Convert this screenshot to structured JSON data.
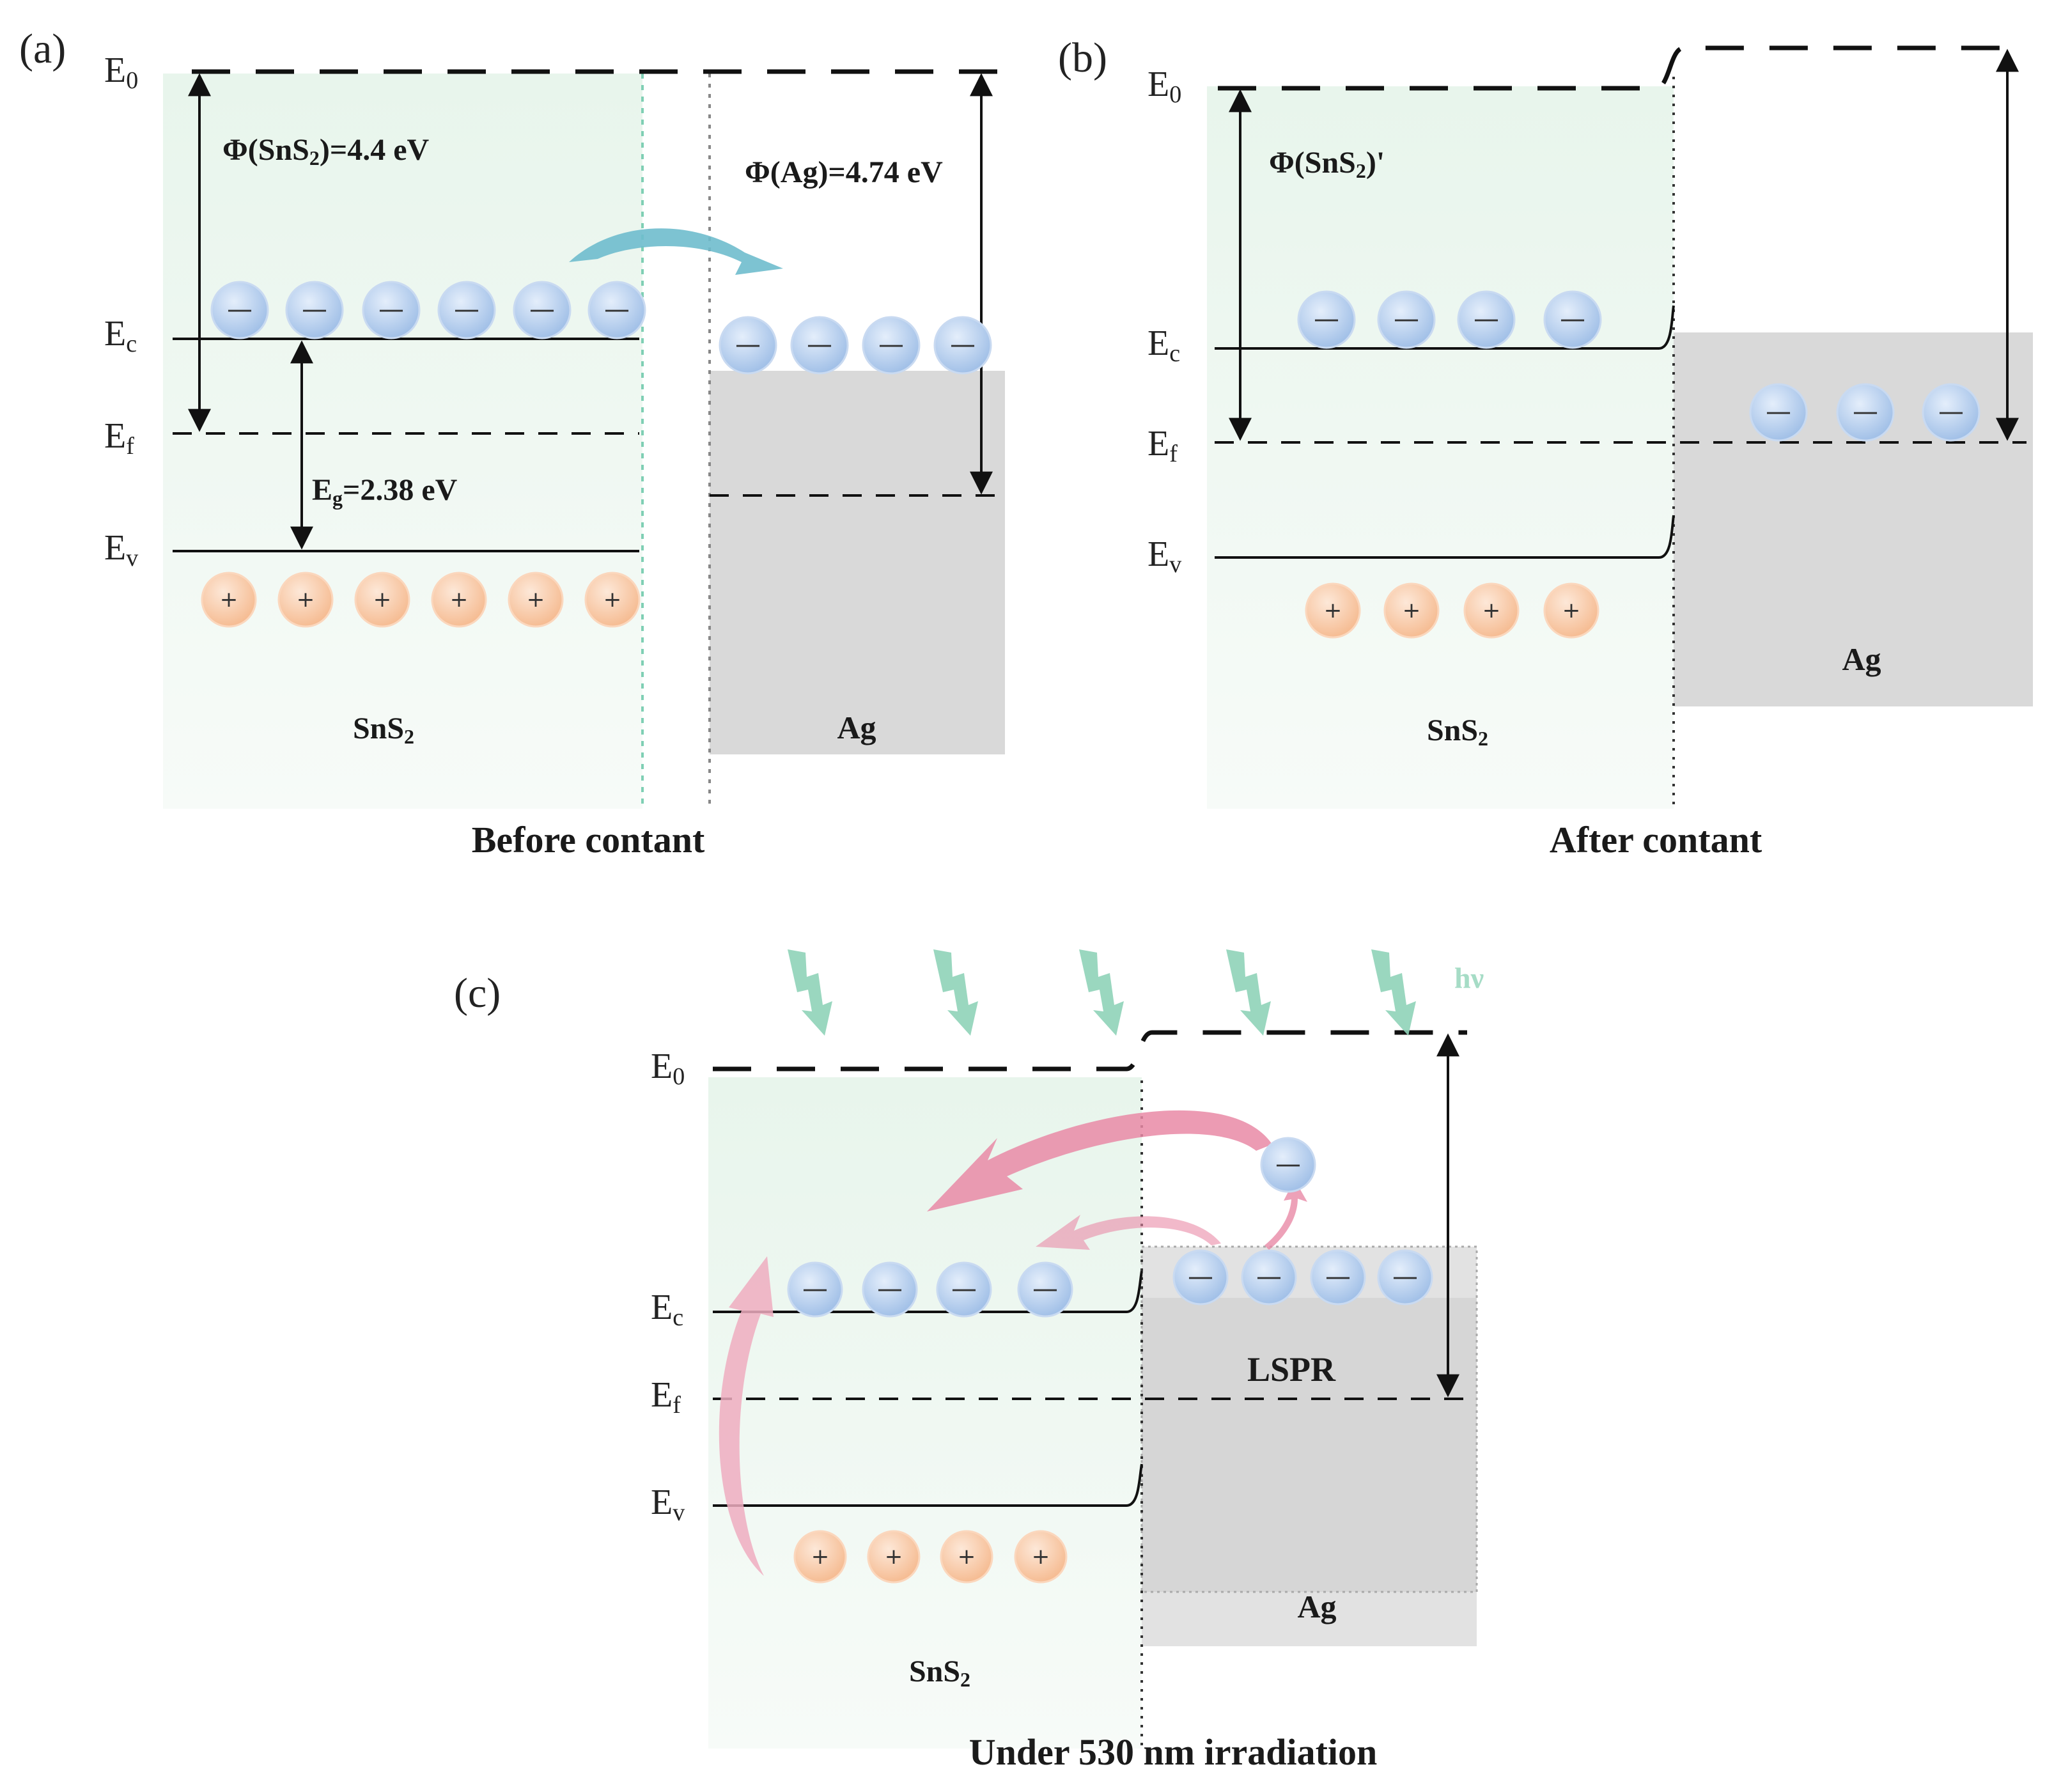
{
  "panel_a": {
    "label": "(a)",
    "caption": "Before contant",
    "levels": {
      "e0": "E",
      "e0_sub": "0",
      "ec": "E",
      "ec_sub": "c",
      "ef": "E",
      "ef_sub": "f",
      "ev": "E",
      "ev_sub": "v"
    },
    "work_function_sns2_pre": "Φ(SnS",
    "work_function_sns2_sub": "2",
    "work_function_sns2_post": ")=4.4 eV",
    "work_function_ag": "Φ(Ag)=4.74 eV",
    "bandgap_pre": "E",
    "bandgap_sub": "g",
    "bandgap_post": "=2.38 eV",
    "sns2_main": "SnS",
    "sns2_sub": "2",
    "ag_label": "Ag"
  },
  "panel_b": {
    "label": "(b)",
    "caption": "After contant",
    "levels": {
      "e0": "E",
      "e0_sub": "0",
      "ec": "E",
      "ec_sub": "c",
      "ef": "E",
      "ef_sub": "f",
      "ev": "E",
      "ev_sub": "v"
    },
    "work_function_pre": "Φ(SnS",
    "work_function_sub": "2",
    "work_function_post": ")'",
    "sns2_main": "SnS",
    "sns2_sub": "2",
    "ag_label": "Ag"
  },
  "panel_c": {
    "label": "(c)",
    "caption": "Under 530 nm irradiation",
    "light": "hν",
    "levels": {
      "e0": "E",
      "e0_sub": "0",
      "ec": "E",
      "ec_sub": "c",
      "ef": "E",
      "ef_sub": "f",
      "ev": "E",
      "ev_sub": "v"
    },
    "lspr": "LSPR",
    "sns2_main": "SnS",
    "sns2_sub": "2",
    "ag_label": "Ag"
  },
  "symbols": {
    "electron": "—",
    "hole": "+"
  },
  "colors": {
    "sns2_region": "#eef7f0",
    "ag_region": "#d9d9d9",
    "electron": "#a9c6ea",
    "hole": "#f9c9a6",
    "transfer_arrow": "#5fb4c9",
    "plasmon_arrow": "#e98aa6",
    "light_bolt": "#8fd3b8"
  }
}
